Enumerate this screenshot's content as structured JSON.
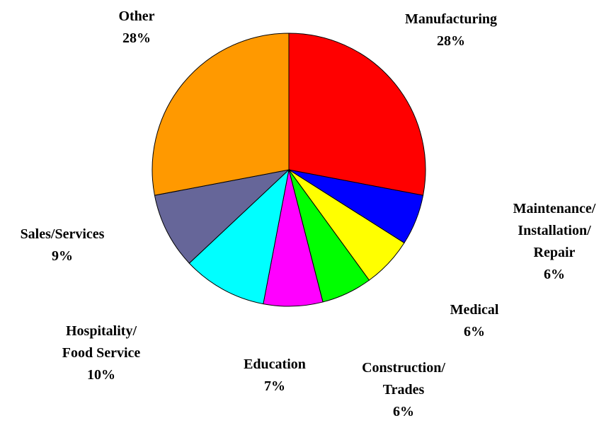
{
  "chart_data": {
    "type": "pie",
    "categories": [
      "Manufacturing",
      "Maintenance/\nInstallation/\nRepair",
      "Medical",
      "Construction/\nTrades",
      "Education",
      "Hospitality/\nFood Service",
      "Sales/Services",
      "Other"
    ],
    "values": [
      28,
      6,
      6,
      6,
      7,
      10,
      9,
      28
    ],
    "value_labels": [
      "28%",
      "6%",
      "6%",
      "6%",
      "7%",
      "10%",
      "9%",
      "28%"
    ],
    "colors": [
      "#ff0000",
      "#0000ff",
      "#ffff00",
      "#00ff00",
      "#ff00ff",
      "#00ffff",
      "#666699",
      "#ff9900"
    ]
  }
}
